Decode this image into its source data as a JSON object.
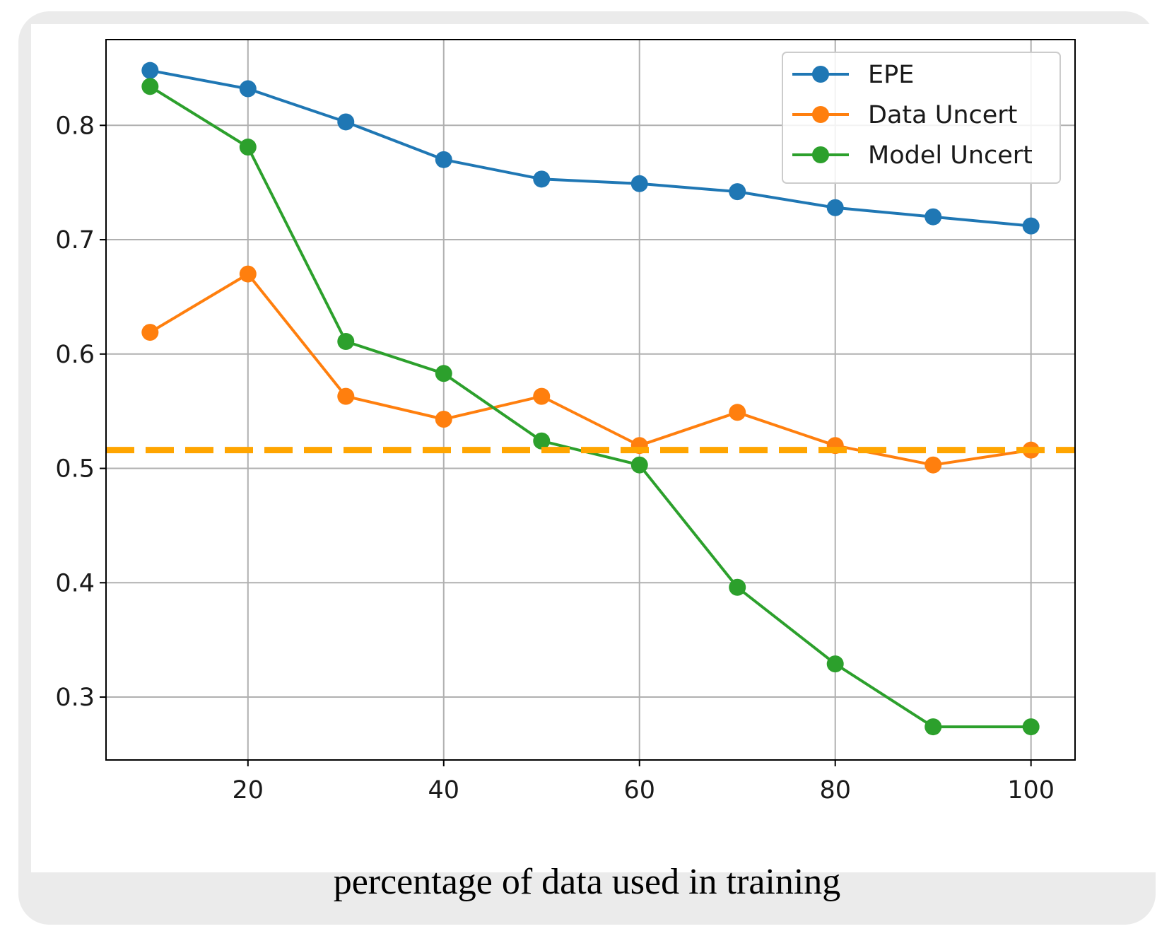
{
  "colors": {
    "epe": "#1f77b4",
    "data_uncert": "#ff7f0e",
    "model_uncert": "#2ca02c",
    "baseline": "#ffa500",
    "grid": "#b0b0b0",
    "frame_bg": "#ebebeb"
  },
  "caption": "percentage of data used in training",
  "chart_data": {
    "type": "line",
    "title": "",
    "xlabel": "percentage of data used in training",
    "ylabel": "",
    "x": [
      10,
      20,
      30,
      40,
      50,
      60,
      70,
      80,
      90,
      100
    ],
    "xlim": [
      5.5,
      104.5
    ],
    "ylim": [
      0.245,
      0.875
    ],
    "x_ticks": [
      20,
      40,
      60,
      80,
      100
    ],
    "x_tick_labels": [
      "20",
      "40",
      "60",
      "80",
      "100"
    ],
    "y_ticks": [
      0.3,
      0.4,
      0.5,
      0.6,
      0.7,
      0.8
    ],
    "y_tick_labels": [
      "0.3",
      "0.4",
      "0.5",
      "0.6",
      "0.7",
      "0.8"
    ],
    "grid": true,
    "legend_position": "top-right",
    "series": [
      {
        "name": "EPE",
        "color": "#1f77b4",
        "values": [
          0.848,
          0.832,
          0.803,
          0.77,
          0.753,
          0.749,
          0.742,
          0.728,
          0.72,
          0.712
        ]
      },
      {
        "name": "Data Uncert",
        "color": "#ff7f0e",
        "values": [
          0.619,
          0.67,
          0.563,
          0.543,
          0.563,
          0.52,
          0.549,
          0.52,
          0.503,
          0.516
        ]
      },
      {
        "name": "Model Uncert",
        "color": "#2ca02c",
        "values": [
          0.834,
          0.781,
          0.611,
          0.583,
          0.524,
          0.503,
          0.396,
          0.329,
          0.274,
          0.274
        ]
      }
    ],
    "reference_line": {
      "orientation": "horizontal",
      "y": 0.516,
      "style": "dashed",
      "color": "#ffa500"
    }
  }
}
